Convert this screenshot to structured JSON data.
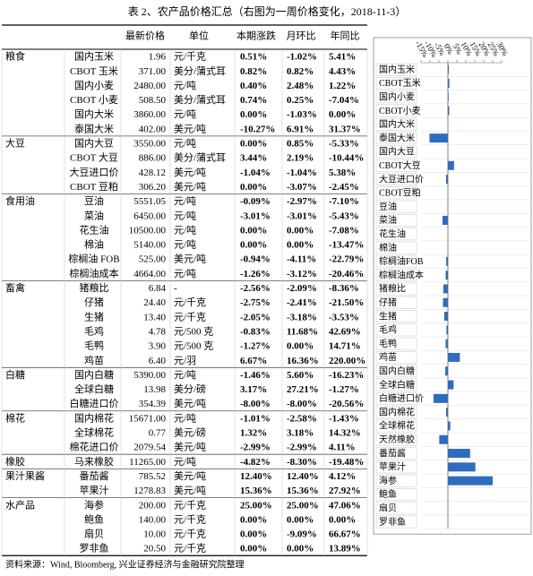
{
  "title": "表 2、农产品价格汇总（右图为一周价格变化，2018-11-3）",
  "table": {
    "headers": [
      "最新价格",
      "单位",
      "本期涨跌",
      "月环比",
      "年同比"
    ],
    "groups": [
      {
        "name": "粮食",
        "rows": [
          [
            "国内玉米",
            "1.96",
            "元/千克",
            "0.51%",
            "-1.02%",
            "5.41%"
          ],
          [
            "CBOT 玉米",
            "371.00",
            "美分/蒲式耳",
            "0.82%",
            "0.82%",
            "4.43%"
          ],
          [
            "国内小麦",
            "2480.00",
            "元/吨",
            "0.40%",
            "2.48%",
            "1.22%"
          ],
          [
            "CBOT 小麦",
            "508.50",
            "美分/蒲式耳",
            "0.74%",
            "0.25%",
            "-7.04%"
          ],
          [
            "国内大米",
            "3860.00",
            "元/吨",
            "0.00%",
            "-1.03%",
            "0.00%"
          ],
          [
            "泰国大米",
            "402.00",
            "美元/吨",
            "-10.27%",
            "6.91%",
            "31.37%"
          ]
        ]
      },
      {
        "name": "大豆",
        "rows": [
          [
            "国内大豆",
            "3550.00",
            "元/吨",
            "0.00%",
            "0.85%",
            "-5.33%"
          ],
          [
            "CBOT 大豆",
            "886.00",
            "美分/蒲式耳",
            "3.44%",
            "2.19%",
            "-10.44%"
          ],
          [
            "大豆进口价",
            "428.12",
            "美元/吨",
            "-1.04%",
            "-1.04%",
            "5.38%"
          ],
          [
            "CBOT 豆粕",
            "306.20",
            "美元/吨",
            "0.00%",
            "-3.07%",
            "-2.45%"
          ]
        ]
      },
      {
        "name": "食用油",
        "rows": [
          [
            "豆油",
            "5551.05",
            "元/吨",
            "-0.09%",
            "-2.97%",
            "-7.10%"
          ],
          [
            "菜油",
            "6450.00",
            "元/吨",
            "-3.01%",
            "-3.01%",
            "-5.43%"
          ],
          [
            "花生油",
            "10500.00",
            "元/吨",
            "0.00%",
            "0.00%",
            "-7.08%"
          ],
          [
            "棉油",
            "5140.00",
            "元/吨",
            "0.00%",
            "0.00%",
            "-13.47%"
          ],
          [
            "棕榈油 FOB",
            "525.00",
            "美元/吨",
            "-0.94%",
            "-4.11%",
            "-22.79%"
          ],
          [
            "棕榈油成本",
            "4664.00",
            "元/吨",
            "-1.26%",
            "-3.12%",
            "-20.46%"
          ]
        ]
      },
      {
        "name": "畜禽",
        "rows": [
          [
            "猪粮比",
            "6.84",
            "-",
            "-2.56%",
            "-2.09%",
            "-8.36%"
          ],
          [
            "仔猪",
            "24.40",
            "元/千克",
            "-2.75%",
            "-2.41%",
            "-21.50%"
          ],
          [
            "生猪",
            "13.40",
            "元/千克",
            "-2.05%",
            "-3.18%",
            "-3.53%"
          ],
          [
            "毛鸡",
            "4.78",
            "元/500 克",
            "-0.83%",
            "11.68%",
            "42.69%"
          ],
          [
            "毛鸭",
            "3.90",
            "元/500 克",
            "-1.27%",
            "0.00%",
            "14.71%"
          ],
          [
            "鸡苗",
            "6.40",
            "元/羽",
            "6.67%",
            "16.36%",
            "220.00%"
          ]
        ]
      },
      {
        "name": "白糖",
        "rows": [
          [
            "国内白糖",
            "5390.00",
            "元/吨",
            "-1.46%",
            "5.60%",
            "-16.23%"
          ],
          [
            "全球白糖",
            "13.98",
            "美分/磅",
            "3.17%",
            "27.21%",
            "-1.27%"
          ],
          [
            "白糖进口价",
            "354.39",
            "美元/吨",
            "-8.00%",
            "-8.00%",
            "-20.56%"
          ]
        ]
      },
      {
        "name": "棉花",
        "rows": [
          [
            "国内棉花",
            "15671.00",
            "元/吨",
            "-1.01%",
            "-2.58%",
            "-1.43%"
          ],
          [
            "全球棉花",
            "0.77",
            "美元/磅",
            "1.32%",
            "3.18%",
            "14.32%"
          ],
          [
            "棉花进口价",
            "2079.54",
            "美元/吨",
            "-2.99%",
            "-2.99%",
            "4.11%"
          ]
        ]
      },
      {
        "name": "橡胶",
        "rows": [
          [
            "马来橡胶",
            "11265.00",
            "元/吨",
            "-4.82%",
            "-8.30%",
            "-19.48%"
          ]
        ]
      },
      {
        "name": "果汁果酱",
        "rows": [
          [
            "番茄酱",
            "785.52",
            "美元/吨",
            "12.40%",
            "12.40%",
            "4.12%"
          ],
          [
            "苹果汁",
            "1278.83",
            "美元/吨",
            "15.36%",
            "15.36%",
            "27.92%"
          ]
        ]
      },
      {
        "name": "水产品",
        "rows": [
          [
            "海参",
            "200.00",
            "元/千克",
            "25.00%",
            "25.00%",
            "47.06%"
          ],
          [
            "鲍鱼",
            "140.00",
            "元/千克",
            "0.00%",
            "0.00%",
            "0.00%"
          ],
          [
            "扇贝",
            "10.00",
            "元/千克",
            "0.00%",
            "-9.09%",
            "66.67%"
          ],
          [
            "罗非鱼",
            "20.50",
            "元/千克",
            "0.00%",
            "0.00%",
            "13.89%"
          ]
        ]
      }
    ]
  },
  "chart_data": {
    "type": "bar",
    "orientation": "horizontal",
    "color": "#2e6cbf",
    "categories": [
      "国内玉米",
      "CBOT玉米",
      "国内小麦",
      "CBOT小麦",
      "国内大米",
      "泰国大米",
      "国内大豆",
      "CBOT大豆",
      "大豆进口价",
      "CBOT豆粕",
      "豆油",
      "菜油",
      "花生油",
      "棉油",
      "棕榈油FOB",
      "棕榈油成本",
      "猪粮比",
      "仔猪",
      "生猪",
      "毛鸡",
      "毛鸭",
      "鸡苗",
      "国内白糖",
      "全球白糖",
      "白糖进口价",
      "国内棉花",
      "全球棉花",
      "天然橡胶",
      "番茄酱",
      "苹果汁",
      "海参",
      "鲍鱼",
      "扇贝",
      "罗非鱼"
    ],
    "values": [
      0.51,
      0.82,
      0.4,
      0.74,
      0,
      -10.27,
      0,
      3.44,
      -1.04,
      0,
      -0.09,
      -3.01,
      0,
      0,
      -0.94,
      -1.26,
      -2.56,
      -2.75,
      -2.05,
      -0.83,
      -1.27,
      6.67,
      -1.46,
      3.17,
      -8.0,
      -1.01,
      1.32,
      -4.82,
      12.4,
      15.36,
      25.0,
      0,
      0,
      0
    ],
    "xlim": [
      -15,
      30
    ],
    "xticks": [
      {
        "value": -15,
        "label": "-15%"
      },
      {
        "value": -10,
        "label": "-10%"
      },
      {
        "value": -5,
        "label": "-5%"
      },
      {
        "value": 0,
        "label": "0%"
      },
      {
        "value": 5,
        "label": "5%"
      },
      {
        "value": 10,
        "label": "10%"
      },
      {
        "value": 15,
        "label": "15%"
      },
      {
        "value": 20,
        "label": "20%"
      },
      {
        "value": 25,
        "label": "25%"
      },
      {
        "value": 30,
        "label": "30%"
      }
    ]
  },
  "source": "资料来源：Wind, Bloomberg, 兴业证券经济与金融研究院整理"
}
